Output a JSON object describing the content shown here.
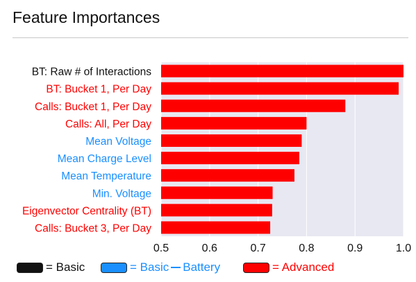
{
  "title": "Feature Importances",
  "colors": {
    "basic": "#111111",
    "battery": "#1a8fff",
    "advanced": "#ff0000",
    "bar_fill": "#ff0000",
    "plot_bg": "#e8e8f2",
    "grid": "#ffffff"
  },
  "chart_data": {
    "type": "bar",
    "orientation": "horizontal",
    "title": "Feature Importances",
    "xlabel": "",
    "ylabel": "",
    "xlim": [
      0.5,
      1.0
    ],
    "xticks": [
      "0.5",
      "0.6",
      "0.7",
      "0.8",
      "0.9",
      "1.0"
    ],
    "grid": true,
    "legend_position": "bottom",
    "categories": [
      "BT: Raw # of Interactions",
      "BT: Bucket 1, Per Day",
      "Calls: Bucket 1, Per Day",
      "Calls: All, Per Day",
      "Mean Voltage",
      "Mean Charge Level",
      "Mean Temperature",
      "Min. Voltage",
      "Eigenvector Centrality (BT)",
      "Calls: Bucket 3, Per Day"
    ],
    "label_groups": [
      "basic",
      "advanced",
      "advanced",
      "advanced",
      "battery",
      "battery",
      "battery",
      "battery",
      "advanced",
      "advanced"
    ],
    "values": [
      1.0,
      0.99,
      0.88,
      0.8,
      0.79,
      0.785,
      0.775,
      0.73,
      0.729,
      0.725
    ]
  },
  "legend": {
    "basic_label": "= Basic",
    "battery_label_1": "= Basic",
    "battery_label_2": "Battery",
    "advanced_label": "= Advanced"
  }
}
